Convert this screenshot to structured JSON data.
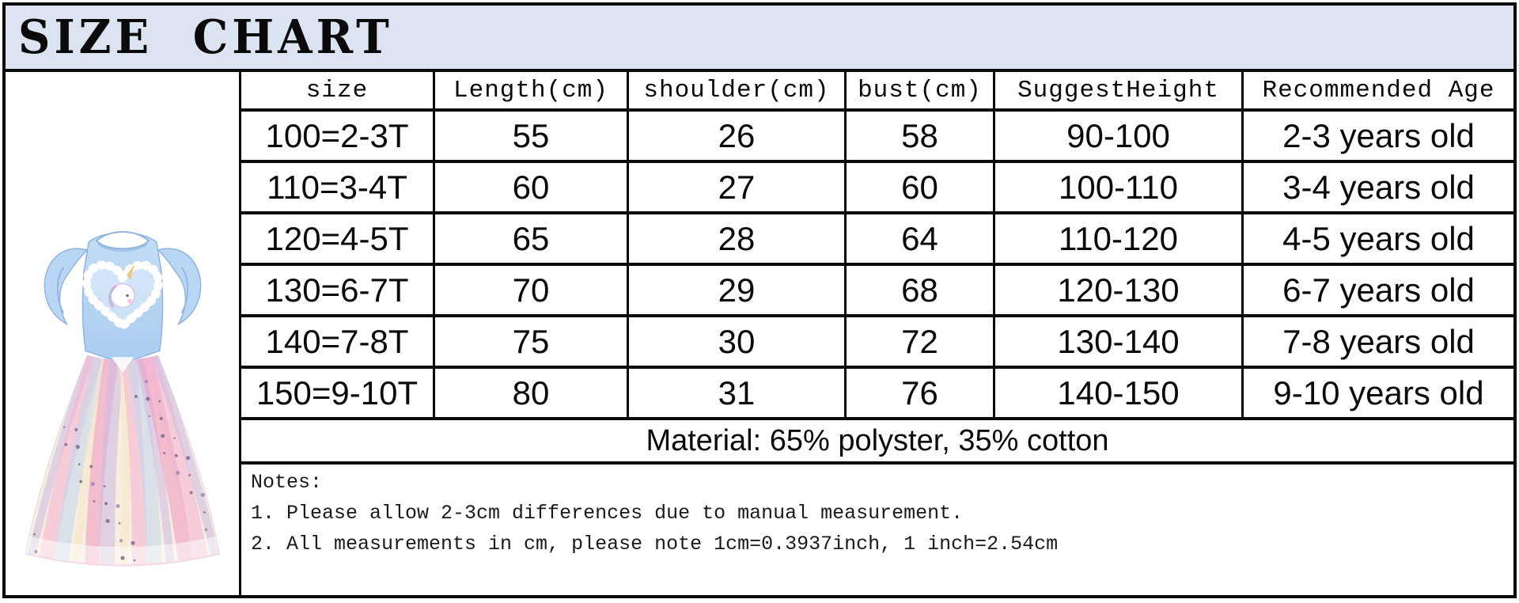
{
  "title": "SIZE CHART",
  "colors": {
    "band_bg": "#dbe4f0",
    "border": "#0a0a0a",
    "dress_bodice": "#b5d4f2",
    "dress_stripe_lavender": "#c7aee6",
    "dress_stripe_pink": "#f4a5cd",
    "dress_stripe_blue": "#b9d2f0",
    "dress_stripe_cream": "#f7e8c4"
  },
  "product_image": {
    "alt": "light blue flutter-sleeve dress with sequin heart and rainbow tulle skirt"
  },
  "table": {
    "headers": [
      "size",
      "Length(cm)",
      "shoulder(cm)",
      "bust(cm)",
      "SuggestHeight",
      "Recommended Age"
    ],
    "rows": [
      [
        "100=2-3T",
        "55",
        "26",
        "58",
        "90-100",
        "2-3 years old"
      ],
      [
        "110=3-4T",
        "60",
        "27",
        "60",
        "100-110",
        "3-4 years old"
      ],
      [
        "120=4-5T",
        "65",
        "28",
        "64",
        "110-120",
        "4-5 years old"
      ],
      [
        "130=6-7T",
        "70",
        "29",
        "68",
        "120-130",
        "6-7 years old"
      ],
      [
        "140=7-8T",
        "75",
        "30",
        "72",
        "130-140",
        "7-8 years old"
      ],
      [
        "150=9-10T",
        "80",
        "31",
        "76",
        "140-150",
        "9-10 years old"
      ]
    ],
    "material": "Material: 65% polyster, 35% cotton"
  },
  "notes": {
    "label": "Notes:",
    "items": [
      "1. Please allow 2-3cm differences due to manual measurement.",
      "2. All measurements in cm, please note 1cm=0.3937inch, 1 inch=2.54cm"
    ]
  }
}
